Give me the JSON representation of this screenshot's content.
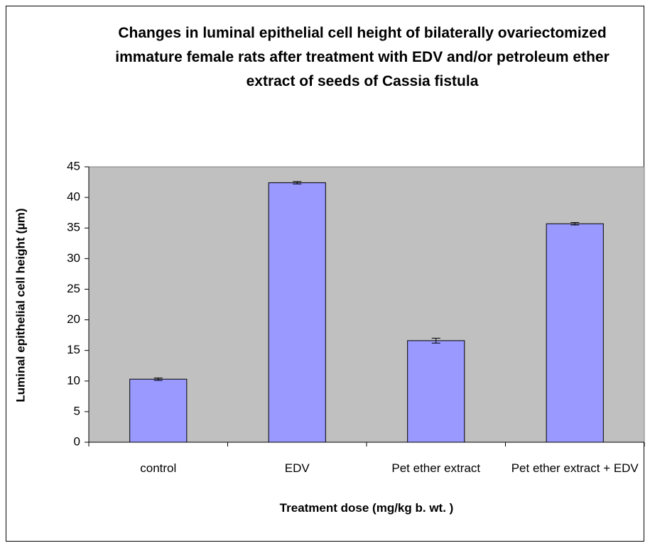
{
  "chart_data": {
    "type": "bar",
    "title": "Changes in luminal epithelial cell height of bilaterally ovariectomized immature female rats after treatment with EDV and/or petroleum ether extract of seeds of Cassia fistula",
    "xlabel": "Treatment dose (mg/kg b. wt. )",
    "ylabel": "Luminal epithelial cell height (µm)",
    "categories": [
      "control",
      "EDV",
      "Pet ether extract",
      "Pet ether extract + EDV"
    ],
    "values": [
      10.3,
      42.4,
      16.6,
      35.7
    ],
    "errors": [
      0.2,
      0.2,
      0.4,
      0.2
    ],
    "color": "#9999ff",
    "ylim": [
      0,
      45
    ],
    "yticks": [
      0,
      5,
      10,
      15,
      20,
      25,
      30,
      35,
      40,
      45
    ],
    "grid": false
  }
}
